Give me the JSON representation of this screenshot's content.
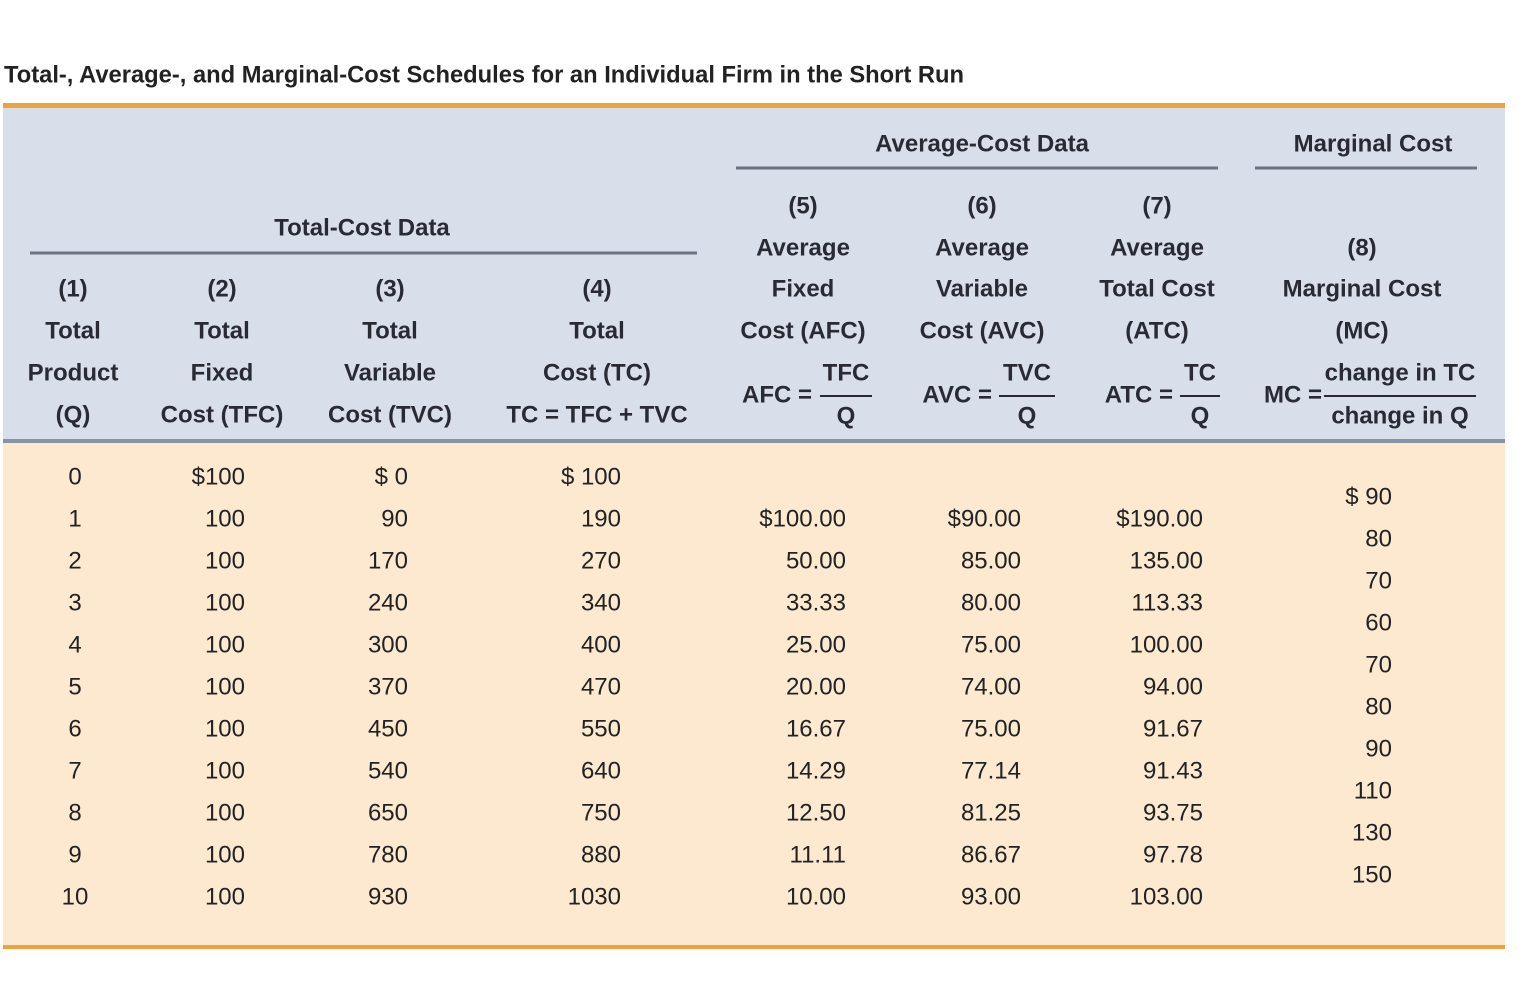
{
  "title": "Total-, Average-, and Marginal-Cost Schedules for an Individual Firm in the Short Run",
  "group_headers": {
    "total_cost": "Total-Cost Data",
    "average_cost": "Average-Cost Data",
    "marginal_cost": "Marginal Cost"
  },
  "columns": [
    {
      "lines": [
        "(1)",
        "Total",
        "Product",
        "(Q)"
      ]
    },
    {
      "lines": [
        "(2)",
        "Total",
        "Fixed",
        "Cost (TFC)"
      ]
    },
    {
      "lines": [
        "(3)",
        "Total",
        "Variable",
        "Cost (TVC)"
      ]
    },
    {
      "lines": [
        "(4)",
        "Total",
        "Cost (TC)",
        "TC = TFC + TVC"
      ]
    },
    {
      "lines": [
        "(5)",
        "Average",
        "Fixed",
        "Cost (AFC)"
      ],
      "formula": {
        "lhs": "AFC =",
        "numerator": "TFC",
        "denominator": "Q"
      }
    },
    {
      "lines": [
        "(6)",
        "Average",
        "Variable",
        "Cost (AVC)"
      ],
      "formula": {
        "lhs": "AVC =",
        "numerator": "TVC",
        "denominator": "Q"
      }
    },
    {
      "lines": [
        "(7)",
        "Average",
        "Total Cost",
        "(ATC)"
      ],
      "formula": {
        "lhs": "ATC =",
        "numerator": "TC",
        "denominator": "Q"
      }
    },
    {
      "lines": [
        "(8)",
        "Marginal Cost",
        "(MC)"
      ],
      "formula": {
        "lhs": "MC =",
        "numerator": "change in TC",
        "denominator": "change in Q"
      }
    }
  ],
  "rows": [
    [
      "0",
      "$100",
      "$ 0",
      "$ 100"
    ],
    [
      "1",
      "100",
      "90",
      "190",
      "$100.00",
      "$90.00",
      "$190.00"
    ],
    [
      "2",
      "100",
      "170",
      "270",
      "50.00",
      "85.00",
      "135.00"
    ],
    [
      "3",
      "100",
      "240",
      "340",
      "33.33",
      "80.00",
      "113.33"
    ],
    [
      "4",
      "100",
      "300",
      "400",
      "25.00",
      "75.00",
      "100.00"
    ],
    [
      "5",
      "100",
      "370",
      "470",
      "20.00",
      "74.00",
      "94.00"
    ],
    [
      "6",
      "100",
      "450",
      "550",
      "16.67",
      "75.00",
      "91.67"
    ],
    [
      "7",
      "100",
      "540",
      "640",
      "14.29",
      "77.14",
      "91.43"
    ],
    [
      "8",
      "100",
      "650",
      "750",
      "12.50",
      "81.25",
      "93.75"
    ],
    [
      "9",
      "100",
      "780",
      "880",
      "11.11",
      "86.67",
      "97.78"
    ],
    [
      "10",
      "100",
      "930",
      "1030",
      "10.00",
      "93.00",
      "103.00"
    ]
  ],
  "marginal_cost": [
    "$ 90",
    "80",
    "70",
    "60",
    "70",
    "80",
    "90",
    "110",
    "130",
    "150"
  ]
}
